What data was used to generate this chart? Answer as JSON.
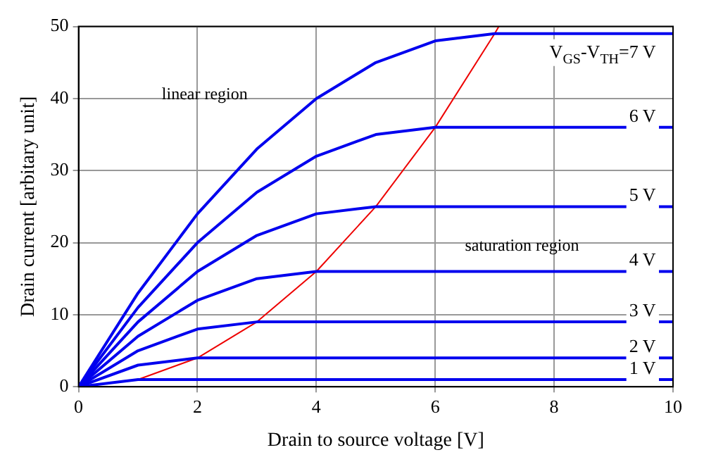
{
  "chart_data": {
    "type": "line",
    "xlabel": "Drain to source voltage [V]",
    "ylabel": "Drain current [arbitary unit]",
    "xlim": [
      0,
      10
    ],
    "ylim": [
      0,
      50
    ],
    "xticks": [
      0,
      2,
      4,
      6,
      8,
      10
    ],
    "yticks": [
      0,
      10,
      20,
      30,
      40,
      50
    ],
    "grid": true,
    "legend": false,
    "marker": "none",
    "line_style": "solid",
    "annotations": [
      "linear region",
      "saturation region"
    ],
    "series": [
      {
        "name": "V$_{GS}$-V$_{TH}$=7 V",
        "color": "#0000ee",
        "x": [
          0,
          1,
          2,
          3,
          4,
          5,
          6,
          7,
          10
        ],
        "values": [
          0,
          13,
          24,
          33,
          40,
          45,
          48,
          49,
          49
        ]
      },
      {
        "name": "6 V",
        "color": "#0000ee",
        "x": [
          0,
          1,
          2,
          3,
          4,
          5,
          6,
          10
        ],
        "values": [
          0,
          11,
          20,
          27,
          32,
          35,
          36,
          36
        ]
      },
      {
        "name": "5 V",
        "color": "#0000ee",
        "x": [
          0,
          1,
          2,
          3,
          4,
          5,
          10
        ],
        "values": [
          0,
          9,
          16,
          21,
          24,
          25,
          25
        ]
      },
      {
        "name": "4 V",
        "color": "#0000ee",
        "x": [
          0,
          1,
          2,
          3,
          4,
          10
        ],
        "values": [
          0,
          7,
          12,
          15,
          16,
          16
        ]
      },
      {
        "name": "3 V",
        "color": "#0000ee",
        "x": [
          0,
          1,
          2,
          3,
          10
        ],
        "values": [
          0,
          5,
          8,
          9,
          9
        ]
      },
      {
        "name": "2 V",
        "color": "#0000ee",
        "x": [
          0,
          1,
          2,
          10
        ],
        "values": [
          0,
          3,
          4,
          4
        ]
      },
      {
        "name": "1 V",
        "color": "#0000ee",
        "x": [
          0,
          1,
          10
        ],
        "values": [
          0,
          1,
          1
        ]
      },
      {
        "color": "#ee0000",
        "x": [
          0,
          1,
          2,
          3,
          4,
          5,
          6,
          7,
          7.07
        ],
        "values": [
          0,
          1,
          4,
          9,
          16,
          25,
          36,
          49,
          50
        ]
      }
    ]
  }
}
